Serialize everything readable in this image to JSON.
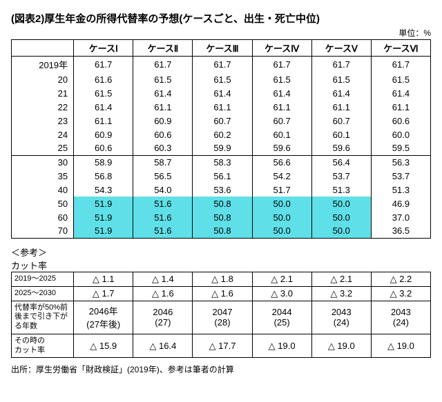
{
  "title": "(図表2)厚生年金の所得代替率の予想(ケースごと、出生・死亡中位)",
  "unit": "単位：%",
  "columns": [
    "ケースⅠ",
    "ケースⅡ",
    "ケースⅢ",
    "ケースⅣ",
    "ケースⅤ",
    "ケースⅥ"
  ],
  "main_rows": [
    {
      "label": "2019年",
      "vals": [
        "61.7",
        "61.7",
        "61.7",
        "61.7",
        "61.7",
        "61.7"
      ],
      "group": 0,
      "hl": [
        false,
        false,
        false,
        false,
        false,
        false
      ]
    },
    {
      "label": "20",
      "vals": [
        "61.6",
        "61.5",
        "61.5",
        "61.5",
        "61.5",
        "61.5"
      ],
      "group": 0,
      "hl": [
        false,
        false,
        false,
        false,
        false,
        false
      ]
    },
    {
      "label": "21",
      "vals": [
        "61.5",
        "61.4",
        "61.4",
        "61.4",
        "61.4",
        "61.4"
      ],
      "group": 0,
      "hl": [
        false,
        false,
        false,
        false,
        false,
        false
      ]
    },
    {
      "label": "22",
      "vals": [
        "61.4",
        "61.1",
        "61.1",
        "61.1",
        "61.1",
        "61.1"
      ],
      "group": 0,
      "hl": [
        false,
        false,
        false,
        false,
        false,
        false
      ]
    },
    {
      "label": "23",
      "vals": [
        "61.1",
        "60.9",
        "60.7",
        "60.7",
        "60.7",
        "60.6"
      ],
      "group": 0,
      "hl": [
        false,
        false,
        false,
        false,
        false,
        false
      ]
    },
    {
      "label": "24",
      "vals": [
        "60.9",
        "60.6",
        "60.2",
        "60.1",
        "60.1",
        "60.0"
      ],
      "group": 0,
      "hl": [
        false,
        false,
        false,
        false,
        false,
        false
      ]
    },
    {
      "label": "25",
      "vals": [
        "60.6",
        "60.3",
        "59.9",
        "59.6",
        "59.6",
        "59.5"
      ],
      "group": 0,
      "hl": [
        false,
        false,
        false,
        false,
        false,
        false
      ]
    },
    {
      "label": "30",
      "vals": [
        "58.9",
        "58.7",
        "58.3",
        "56.6",
        "56.4",
        "56.3"
      ],
      "group": 1,
      "hl": [
        false,
        false,
        false,
        false,
        false,
        false
      ]
    },
    {
      "label": "35",
      "vals": [
        "56.8",
        "56.5",
        "56.1",
        "54.2",
        "53.7",
        "53.7"
      ],
      "group": 1,
      "hl": [
        false,
        false,
        false,
        false,
        false,
        false
      ]
    },
    {
      "label": "40",
      "vals": [
        "54.3",
        "54.0",
        "53.6",
        "51.7",
        "51.3",
        "51.3"
      ],
      "group": 1,
      "hl": [
        false,
        false,
        false,
        false,
        false,
        false
      ]
    },
    {
      "label": "50",
      "vals": [
        "51.9",
        "51.6",
        "50.8",
        "50.0",
        "50.0",
        "46.9"
      ],
      "group": 1,
      "hl": [
        true,
        true,
        true,
        true,
        true,
        false
      ]
    },
    {
      "label": "60",
      "vals": [
        "51.9",
        "51.6",
        "50.8",
        "50.0",
        "50.0",
        "37.0"
      ],
      "group": 1,
      "hl": [
        true,
        true,
        true,
        true,
        true,
        false
      ]
    },
    {
      "label": "70",
      "vals": [
        "51.9",
        "51.6",
        "50.8",
        "50.0",
        "50.0",
        "36.5"
      ],
      "group": 1,
      "hl": [
        true,
        true,
        true,
        true,
        true,
        false
      ]
    }
  ],
  "ref_heading": "＜参考＞",
  "ref_sub": "カット率",
  "ref_rows": [
    {
      "label": "2019～2025",
      "vals": [
        "△ 1.1",
        "△ 1.4",
        "△ 1.8",
        "△ 2.1",
        "△ 2.1",
        "△ 2.2"
      ]
    },
    {
      "label": "2025～2030",
      "vals": [
        "△ 1.7",
        "△ 1.6",
        "△ 1.6",
        "△ 3.0",
        "△ 3.2",
        "△ 3.2"
      ]
    },
    {
      "label": "代替率が50%前後まで引き下がる年数",
      "vals": [
        "2046年\n(27年後)",
        "2046\n(27)",
        "2047\n(28)",
        "2044\n(25)",
        "2043\n(24)",
        "2043\n(24)"
      ],
      "multiline": true
    },
    {
      "label": "その時の\nカット率",
      "vals": [
        "△ 15.9",
        "△ 16.4",
        "△ 17.7",
        "△ 19.0",
        "△ 19.0",
        "△ 19.0"
      ],
      "multiline": true
    }
  ],
  "source": "出所：厚生労働省「財政検証」(2019年)、参考は筆者の計算",
  "colors": {
    "highlight": "#5fe0e8",
    "border": "#000000",
    "background": "#ffffff"
  }
}
